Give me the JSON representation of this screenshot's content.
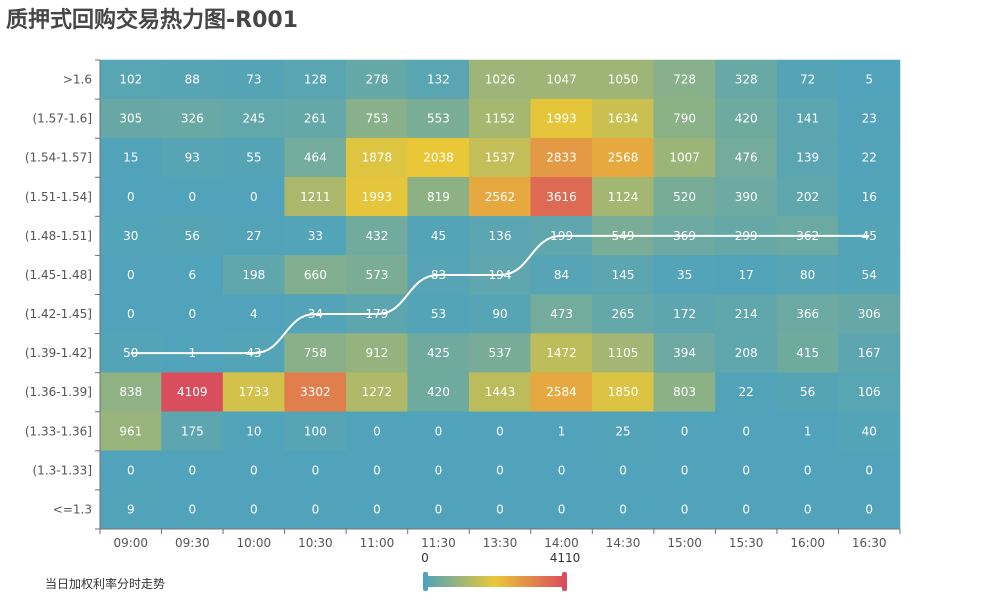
{
  "chart_data": {
    "type": "heatmap",
    "title": "质押式回购交易热力图-R001",
    "x_categories": [
      "09:00",
      "09:30",
      "10:00",
      "10:30",
      "11:00",
      "11:30",
      "13:30",
      "14:00",
      "14:30",
      "15:00",
      "15:30",
      "16:00",
      "16:30"
    ],
    "y_categories": [
      ">1.6",
      "(1.57-1.6]",
      "(1.54-1.57]",
      "(1.51-1.54]",
      "(1.48-1.51]",
      "(1.45-1.48]",
      "(1.42-1.45]",
      "(1.39-1.42]",
      "(1.36-1.39]",
      "(1.33-1.36]",
      "(1.3-1.33]",
      "<=1.3"
    ],
    "values": [
      [
        102,
        88,
        73,
        128,
        278,
        132,
        1026,
        1047,
        1050,
        728,
        328,
        72,
        5
      ],
      [
        305,
        326,
        245,
        261,
        753,
        553,
        1152,
        1993,
        1634,
        790,
        420,
        141,
        23
      ],
      [
        15,
        93,
        55,
        464,
        1878,
        2038,
        1537,
        2833,
        2568,
        1007,
        476,
        139,
        22
      ],
      [
        0,
        0,
        0,
        1211,
        1993,
        819,
        2562,
        3616,
        1124,
        520,
        390,
        202,
        16
      ],
      [
        30,
        56,
        27,
        33,
        432,
        45,
        136,
        199,
        549,
        369,
        299,
        362,
        45
      ],
      [
        0,
        6,
        198,
        660,
        573,
        83,
        194,
        84,
        145,
        35,
        17,
        80,
        54
      ],
      [
        0,
        0,
        4,
        34,
        179,
        53,
        90,
        473,
        265,
        172,
        214,
        366,
        306
      ],
      [
        50,
        1,
        43,
        758,
        912,
        425,
        537,
        1472,
        1105,
        394,
        208,
        415,
        167
      ],
      [
        838,
        4109,
        1733,
        3302,
        1272,
        420,
        1443,
        2584,
        1850,
        803,
        22,
        56,
        106
      ],
      [
        961,
        175,
        10,
        100,
        0,
        0,
        0,
        1,
        25,
        0,
        0,
        1,
        40
      ],
      [
        0,
        0,
        0,
        0,
        0,
        0,
        0,
        0,
        0,
        0,
        0,
        0,
        0
      ],
      [
        9,
        0,
        0,
        0,
        0,
        0,
        0,
        0,
        0,
        0,
        0,
        0,
        0
      ]
    ],
    "line_series": {
      "name": "当日加权利率分时走势",
      "row_index": [
        7,
        7,
        7,
        6,
        6,
        5,
        5,
        4,
        4,
        4,
        4,
        4,
        4
      ]
    },
    "visual_map": {
      "min": 0,
      "max": 4110,
      "min_label": "0",
      "max_label": "4110",
      "colors": [
        "#50a3ba",
        "#eac736",
        "#d94e5d"
      ]
    },
    "line_color": "#ffffff"
  }
}
